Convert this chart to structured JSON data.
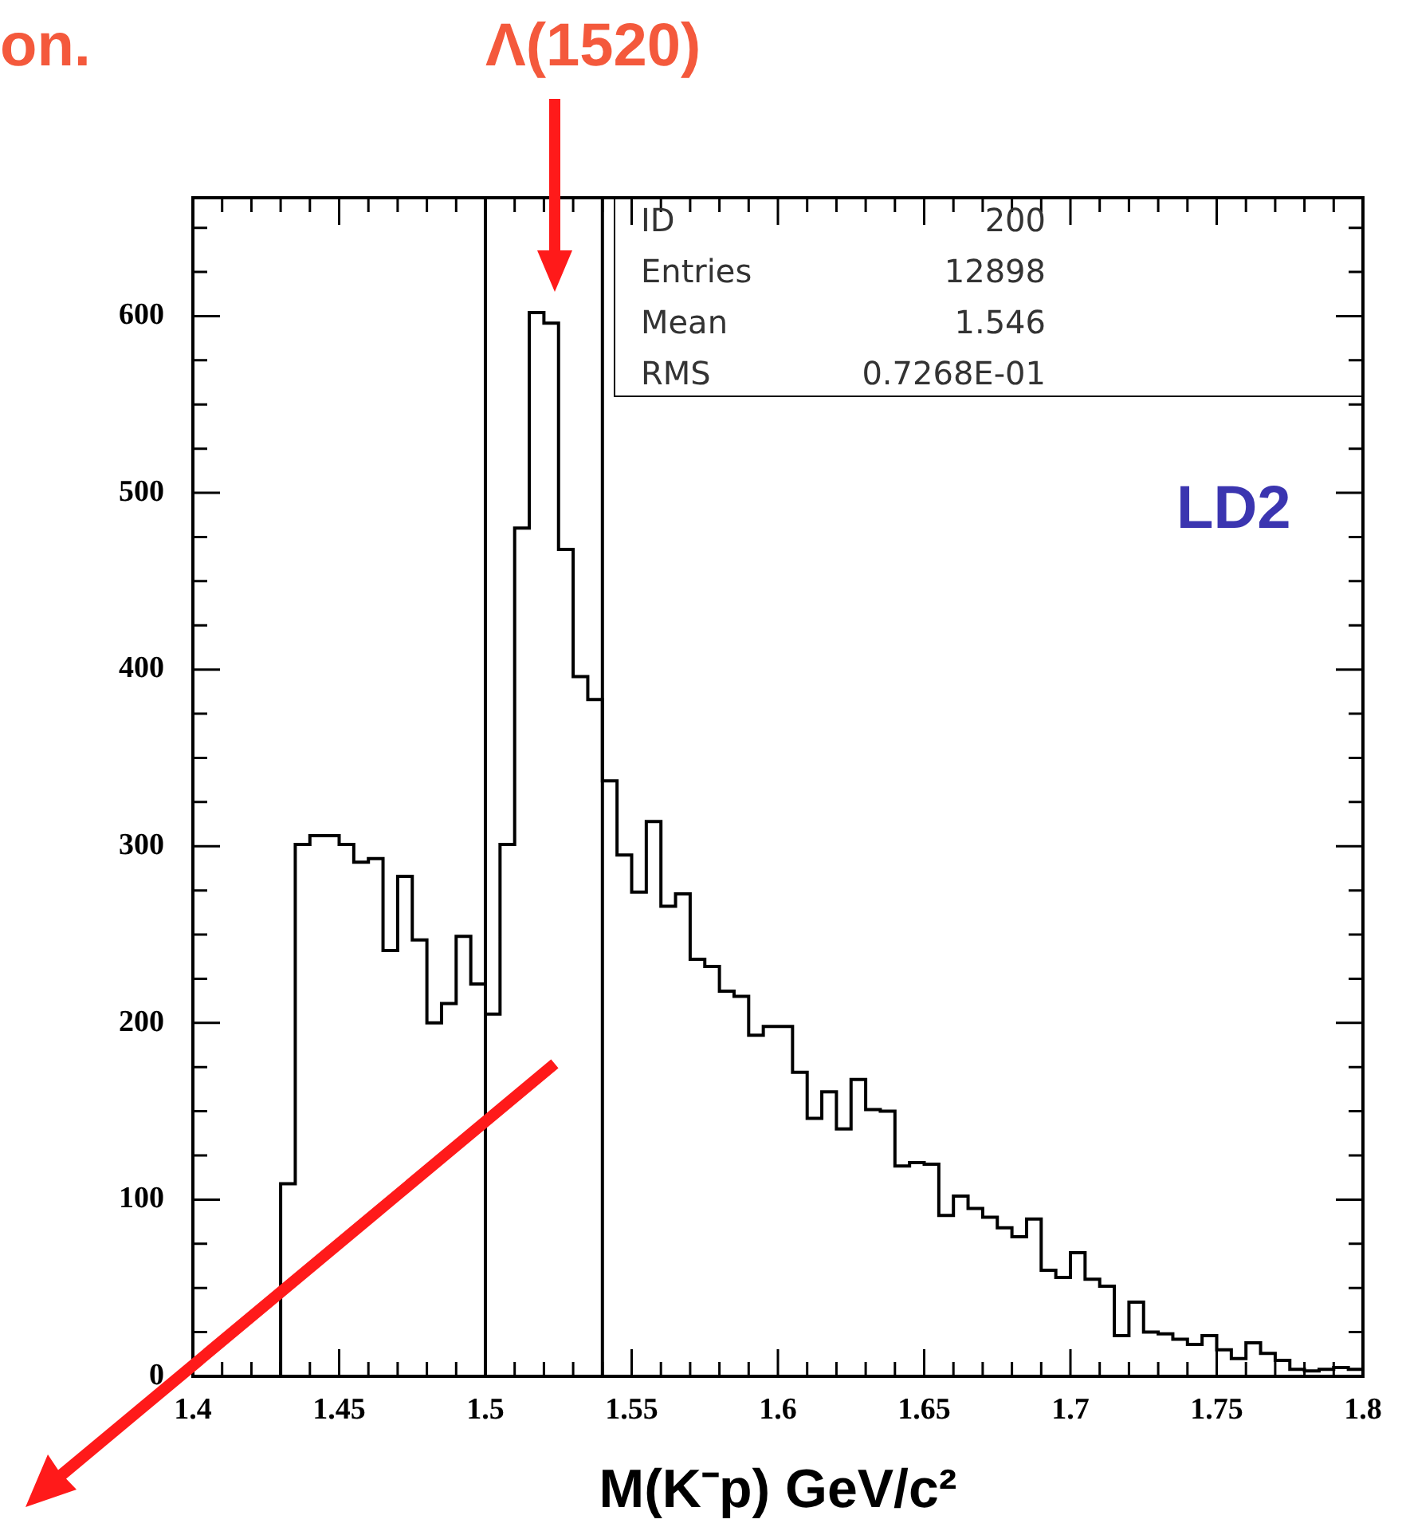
{
  "chart_data": {
    "type": "histogram",
    "xlabel": "M(K⁻p) GeV/c²",
    "color": "#000000",
    "bins": [
      1.4,
      1.405,
      1.41,
      1.415,
      1.42,
      1.425,
      1.43,
      1.435,
      1.44,
      1.445,
      1.45,
      1.455,
      1.46,
      1.465,
      1.47,
      1.475,
      1.48,
      1.485,
      1.49,
      1.495,
      1.5,
      1.505,
      1.51,
      1.515,
      1.52,
      1.525,
      1.53,
      1.535,
      1.54,
      1.545,
      1.55,
      1.555,
      1.56,
      1.565,
      1.57,
      1.575,
      1.58,
      1.585,
      1.59,
      1.595,
      1.6,
      1.605,
      1.61,
      1.615,
      1.62,
      1.625,
      1.63,
      1.635,
      1.64,
      1.645,
      1.65,
      1.655,
      1.66,
      1.665,
      1.67,
      1.675,
      1.68,
      1.685,
      1.69,
      1.695,
      1.7,
      1.705,
      1.71,
      1.715,
      1.72,
      1.725,
      1.73,
      1.735,
      1.74,
      1.745,
      1.75,
      1.755,
      1.76,
      1.765,
      1.77,
      1.775,
      1.78,
      1.785,
      1.79,
      1.795,
      1.8
    ],
    "values": [
      0,
      0,
      0,
      0,
      0,
      0,
      109,
      301,
      306,
      306,
      301,
      291,
      293,
      241,
      283,
      247,
      200,
      211,
      249,
      222,
      205,
      301,
      480,
      602,
      596,
      468,
      396,
      383,
      337,
      295,
      274,
      314,
      266,
      273,
      236,
      232,
      218,
      215,
      193,
      198,
      198,
      172,
      146,
      161,
      140,
      168,
      151,
      150,
      119,
      121,
      120,
      91,
      102,
      95,
      90,
      84,
      79,
      89,
      60,
      56,
      70,
      55,
      51,
      23,
      42,
      25,
      24,
      21,
      18,
      23,
      15,
      10,
      19,
      13,
      9,
      4,
      3,
      4,
      5,
      4
    ],
    "xlim": [
      1.4,
      1.8
    ],
    "ylim": [
      0,
      667
    ],
    "xticks": [
      1.4,
      {
        "value": 1.41,
        "label": null
      },
      {
        "value": 1.42,
        "label": null
      },
      {
        "value": 1.43,
        "label": null
      },
      {
        "value": 1.44,
        "label": null
      },
      1.45,
      {
        "value": 1.46,
        "label": null
      },
      {
        "value": 1.47,
        "label": null
      },
      {
        "value": 1.48,
        "label": null
      },
      {
        "value": 1.49,
        "label": null
      },
      1.5,
      {
        "value": 1.51,
        "label": null
      },
      {
        "value": 1.52,
        "label": null
      },
      {
        "value": 1.53,
        "label": null
      },
      {
        "value": 1.54,
        "label": null
      },
      1.55,
      {
        "value": 1.56,
        "label": null
      },
      {
        "value": 1.57,
        "label": null
      },
      {
        "value": 1.58,
        "label": null
      },
      {
        "value": 1.59,
        "label": null
      },
      1.6,
      {
        "value": 1.61,
        "label": null
      },
      {
        "value": 1.62,
        "label": null
      },
      {
        "value": 1.63,
        "label": null
      },
      {
        "value": 1.64,
        "label": null
      },
      1.65,
      {
        "value": 1.66,
        "label": null
      },
      {
        "value": 1.67,
        "label": null
      },
      {
        "value": 1.68,
        "label": null
      },
      {
        "value": 1.69,
        "label": null
      },
      1.7,
      {
        "value": 1.71,
        "label": null
      },
      {
        "value": 1.72,
        "label": null
      },
      {
        "value": 1.73,
        "label": null
      },
      {
        "value": 1.74,
        "label": null
      },
      1.75,
      {
        "value": 1.76,
        "label": null
      },
      {
        "value": 1.77,
        "label": null
      },
      {
        "value": 1.78,
        "label": null
      },
      {
        "value": 1.79,
        "label": null
      },
      1.8
    ],
    "yticks": [
      0,
      {
        "value": 25,
        "label": null
      },
      {
        "value": 50,
        "label": null
      },
      {
        "value": 75,
        "label": null
      },
      100,
      {
        "value": 125,
        "label": null
      },
      {
        "value": 150,
        "label": null
      },
      {
        "value": 175,
        "label": null
      },
      200,
      {
        "value": 225,
        "label": null
      },
      {
        "value": 250,
        "label": null
      },
      {
        "value": 275,
        "label": null
      },
      300,
      {
        "value": 325,
        "label": null
      },
      {
        "value": 350,
        "label": null
      },
      {
        "value": 375,
        "label": null
      },
      400,
      {
        "value": 425,
        "label": null
      },
      {
        "value": 450,
        "label": null
      },
      {
        "value": 475,
        "label": null
      },
      500,
      {
        "value": 525,
        "label": null
      },
      {
        "value": 550,
        "label": null
      },
      {
        "value": 575,
        "label": null
      },
      600,
      {
        "value": 625,
        "label": null
      },
      {
        "value": 650,
        "label": null
      }
    ],
    "ref_lines": [
      {
        "axis": "x",
        "value": 1.5,
        "color": "#000000"
      },
      {
        "axis": "x",
        "value": 1.54,
        "color": "#000000"
      }
    ],
    "annotations": [
      "Λ(1520)",
      "ID",
      "200",
      "Entries",
      "12898",
      "Mean",
      "1.546",
      "RMS",
      "0.7268E-01",
      "LD2",
      "on."
    ]
  }
}
